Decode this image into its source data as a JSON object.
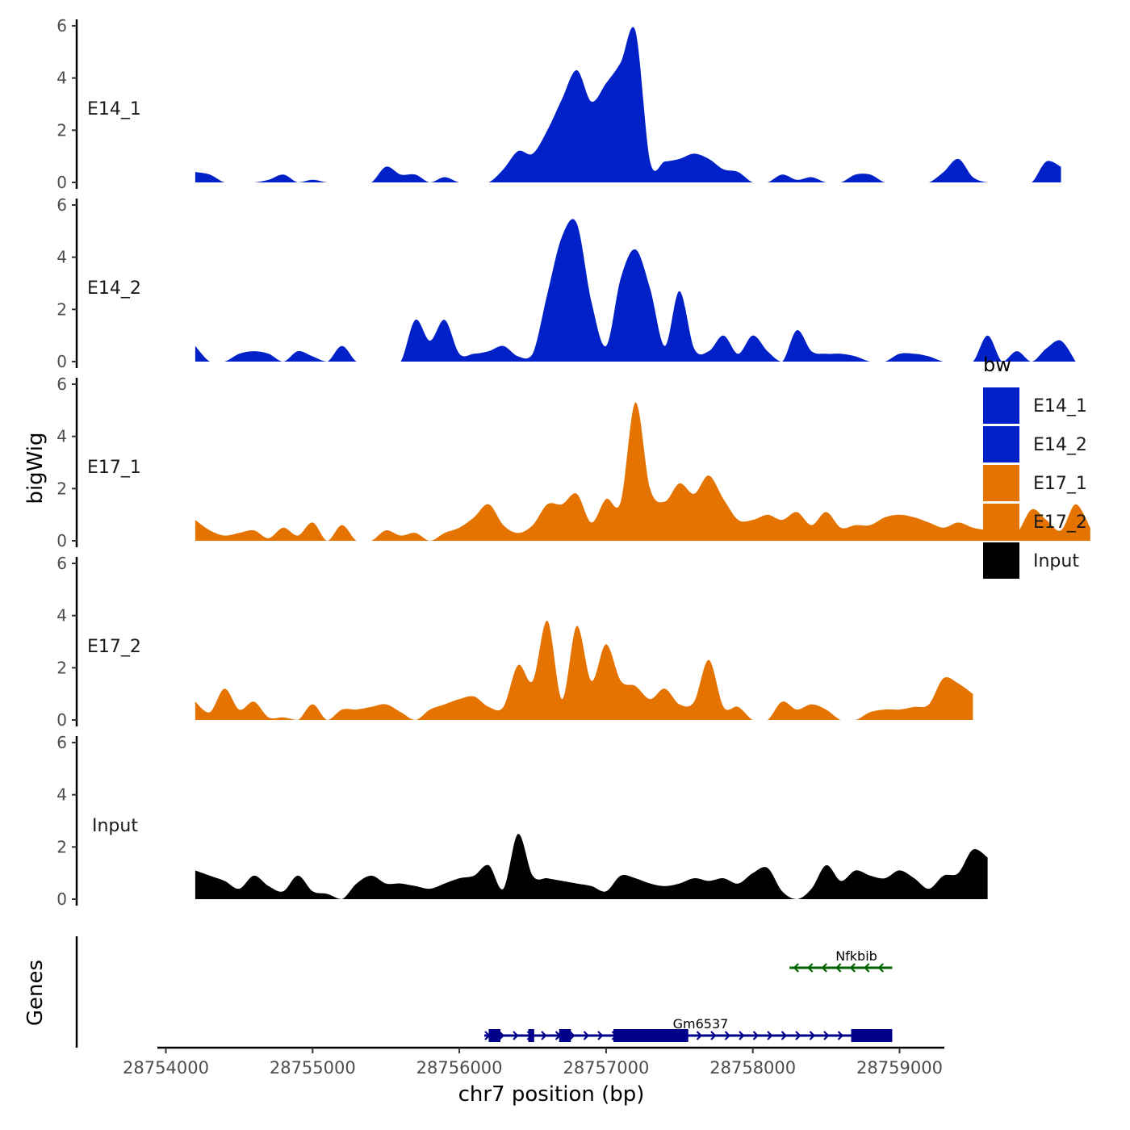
{
  "chart_data": {
    "type": "area",
    "chromosome": "chr7",
    "xlabel": "chr7 position (bp)",
    "ylabel": "bigWig",
    "xlim": [
      28753970,
      28759030
    ],
    "x_ticks": [
      28754000,
      28755000,
      28756000,
      28757000,
      28758000,
      28759000
    ],
    "x_tick_labels": [
      "28754000",
      "28755000",
      "28756000",
      "28757000",
      "28758000",
      "28759000"
    ],
    "ylim": [
      0,
      6
    ],
    "y_ticks": [
      0,
      2,
      4,
      6
    ],
    "y_tick_labels": [
      "0",
      "2",
      "4",
      "6"
    ],
    "legend": {
      "title": "bw",
      "entries": [
        {
          "label": "E14_1",
          "color": "#0020c8"
        },
        {
          "label": "E14_2",
          "color": "#0020c8"
        },
        {
          "label": "E17_1",
          "color": "#e57300"
        },
        {
          "label": "E17_2",
          "color": "#e57300"
        },
        {
          "label": "Input",
          "color": "#000000"
        }
      ]
    },
    "series": [
      {
        "name": "E14_1",
        "color": "#0020c8",
        "x_start": 28754200,
        "x_step": 100,
        "values": [
          0.4,
          0.3,
          0.0,
          0.0,
          0.0,
          0.1,
          0.3,
          0.0,
          0.1,
          0.0,
          0.0,
          0.0,
          0.0,
          0.6,
          0.3,
          0.3,
          0.0,
          0.2,
          0.0,
          0.0,
          0.0,
          0.5,
          1.2,
          1.1,
          2.0,
          3.2,
          4.3,
          3.1,
          3.8,
          4.6,
          5.8,
          0.8,
          0.8,
          0.9,
          1.1,
          0.9,
          0.5,
          0.4,
          0.0,
          0.0,
          0.3,
          0.1,
          0.2,
          0.0,
          0.0,
          0.3,
          0.3,
          0.0,
          0.0,
          0.0,
          0.0,
          0.4,
          0.9,
          0.2,
          0.0,
          0.0,
          0.0,
          0.0,
          0.8,
          0.6
        ]
      },
      {
        "name": "E14_2",
        "color": "#0020c8",
        "x_start": 28754200,
        "x_step": 100,
        "values": [
          0.6,
          0.0,
          0.0,
          0.3,
          0.4,
          0.3,
          0.0,
          0.4,
          0.2,
          0.0,
          0.6,
          0.0,
          0.0,
          0.0,
          0.0,
          1.6,
          0.8,
          1.6,
          0.3,
          0.3,
          0.4,
          0.6,
          0.2,
          0.3,
          2.6,
          4.8,
          5.3,
          2.3,
          0.6,
          3.2,
          4.3,
          2.8,
          0.6,
          2.7,
          0.5,
          0.4,
          1.0,
          0.3,
          1.0,
          0.4,
          0.0,
          1.2,
          0.4,
          0.3,
          0.3,
          0.2,
          0.0,
          0.0,
          0.3,
          0.3,
          0.2,
          0.0,
          0.0,
          0.0,
          1.0,
          0.0,
          0.4,
          0.0,
          0.5,
          0.8,
          0.0
        ]
      },
      {
        "name": "E17_1",
        "color": "#e57300",
        "x_start": 28754200,
        "x_step": 100,
        "values": [
          0.8,
          0.4,
          0.2,
          0.3,
          0.4,
          0.1,
          0.5,
          0.2,
          0.7,
          0.0,
          0.6,
          0.0,
          0.0,
          0.4,
          0.2,
          0.3,
          0.0,
          0.3,
          0.5,
          0.9,
          1.4,
          0.6,
          0.3,
          0.6,
          1.4,
          1.4,
          1.8,
          0.7,
          1.6,
          1.5,
          5.3,
          2.0,
          1.5,
          2.2,
          1.8,
          2.5,
          1.6,
          0.8,
          0.8,
          1.0,
          0.8,
          1.1,
          0.6,
          1.1,
          0.5,
          0.6,
          0.6,
          0.9,
          1.0,
          0.9,
          0.7,
          0.5,
          0.7,
          0.5,
          0.4,
          0.3,
          0.3,
          1.2,
          0.8,
          0.4,
          1.4,
          0.5
        ]
      },
      {
        "name": "E17_2",
        "color": "#e57300",
        "x_start": 28754200,
        "x_step": 100,
        "values": [
          0.7,
          0.3,
          1.2,
          0.4,
          0.7,
          0.1,
          0.1,
          0.0,
          0.6,
          0.0,
          0.4,
          0.4,
          0.5,
          0.6,
          0.3,
          0.0,
          0.4,
          0.6,
          0.8,
          0.9,
          0.5,
          0.5,
          2.1,
          1.5,
          3.8,
          0.8,
          3.6,
          1.5,
          2.9,
          1.5,
          1.3,
          0.8,
          1.2,
          0.6,
          0.7,
          2.3,
          0.5,
          0.5,
          0.0,
          0.0,
          0.7,
          0.4,
          0.6,
          0.4,
          0.0,
          0.0,
          0.3,
          0.4,
          0.4,
          0.5,
          0.6,
          1.6,
          1.4,
          1.0
        ]
      },
      {
        "name": "Input",
        "color": "#000000",
        "x_start": 28754200,
        "x_step": 100,
        "values": [
          1.1,
          0.9,
          0.7,
          0.4,
          0.9,
          0.5,
          0.3,
          0.9,
          0.3,
          0.2,
          0.0,
          0.6,
          0.9,
          0.6,
          0.6,
          0.5,
          0.4,
          0.6,
          0.8,
          0.9,
          1.3,
          0.4,
          2.5,
          0.9,
          0.8,
          0.7,
          0.6,
          0.5,
          0.3,
          0.9,
          0.8,
          0.6,
          0.5,
          0.6,
          0.8,
          0.7,
          0.8,
          0.6,
          1.0,
          1.2,
          0.3,
          0.0,
          0.4,
          1.3,
          0.7,
          1.1,
          0.9,
          0.8,
          1.1,
          0.8,
          0.4,
          0.9,
          1.0,
          1.9,
          1.6
        ]
      }
    ],
    "genes": [
      {
        "name": "Nfkbib",
        "strand": "-",
        "color": "#006400",
        "start": 28758250,
        "end": 28758950
      },
      {
        "name": "Gm6537",
        "strand": "+",
        "color": "#00008b",
        "start": 28756170,
        "end": 28758950,
        "exons": [
          [
            28756200,
            28756280
          ],
          [
            28756470,
            28756510
          ],
          [
            28756680,
            28756760
          ],
          [
            28757050,
            28757560
          ],
          [
            28758670,
            28758950
          ]
        ]
      }
    ],
    "gene_track_label": "Genes"
  }
}
